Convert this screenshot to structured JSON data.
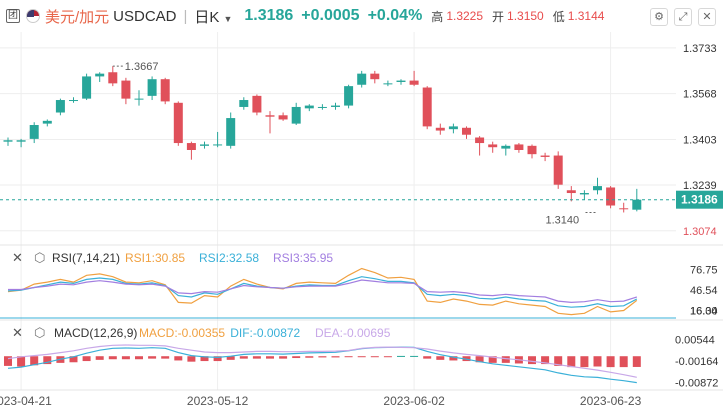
{
  "header": {
    "icon_label": "团",
    "pair_cn": "美元/加元",
    "symbol": "USDCAD",
    "period": "日K",
    "price": "1.3186",
    "change": "+0.0005",
    "change_pct": "+0.04%",
    "high_label": "高",
    "high": "1.3225",
    "open_label": "开",
    "open": "1.3150",
    "low_label": "低",
    "low": "1.3144",
    "settings_icon": "gear-icon",
    "expand_icon": "expand-icon",
    "close_icon": "close-icon"
  },
  "colors": {
    "up": "#27a69a",
    "down": "#e0505a",
    "bg": "#ffffff",
    "grid": "#eeeeee",
    "rsi1": "#f0a040",
    "rsi2": "#3ab0d8",
    "rsi3": "#a27ee0",
    "macd": "#f0a040",
    "dif": "#3ab0d8",
    "dea": "#c8a8e8"
  },
  "chart_data": [
    {
      "type": "candlestick",
      "title": "美元/加元 USDCAD 日K",
      "ylim": [
        1.303,
        1.379
      ],
      "y_ticks": [
        "1.3733",
        "1.3568",
        "1.3403",
        "1.3239",
        "1.3074"
      ],
      "y_tick_values": [
        1.3733,
        1.3568,
        1.3403,
        1.3239,
        1.3074
      ],
      "x_ticks": [
        "2023-04-21",
        "2023-05-12",
        "2023-06-02",
        "2023-06-23"
      ],
      "x_tick_index": [
        1,
        16,
        31,
        46
      ],
      "last_price_label": "1.3186",
      "annotations": [
        {
          "text": "1.3667",
          "index": 8,
          "price": 1.3667
        },
        {
          "text": "1.3140",
          "index": 45,
          "price": 1.314
        }
      ],
      "candles": [
        {
          "o": 1.3395,
          "h": 1.341,
          "l": 1.338,
          "c": 1.34
        },
        {
          "o": 1.3395,
          "h": 1.3405,
          "l": 1.3375,
          "c": 1.34
        },
        {
          "o": 1.3405,
          "h": 1.3465,
          "l": 1.339,
          "c": 1.3455
        },
        {
          "o": 1.346,
          "h": 1.3475,
          "l": 1.345,
          "c": 1.347
        },
        {
          "o": 1.35,
          "h": 1.355,
          "l": 1.349,
          "c": 1.3545
        },
        {
          "o": 1.3545,
          "h": 1.3555,
          "l": 1.3535,
          "c": 1.3545
        },
        {
          "o": 1.355,
          "h": 1.364,
          "l": 1.3545,
          "c": 1.363
        },
        {
          "o": 1.363,
          "h": 1.3645,
          "l": 1.361,
          "c": 1.364
        },
        {
          "o": 1.3645,
          "h": 1.3667,
          "l": 1.3595,
          "c": 1.3605
        },
        {
          "o": 1.3615,
          "h": 1.3625,
          "l": 1.353,
          "c": 1.355
        },
        {
          "o": 1.355,
          "h": 1.358,
          "l": 1.3525,
          "c": 1.355
        },
        {
          "o": 1.356,
          "h": 1.363,
          "l": 1.3545,
          "c": 1.362
        },
        {
          "o": 1.362,
          "h": 1.3625,
          "l": 1.353,
          "c": 1.354
        },
        {
          "o": 1.3535,
          "h": 1.354,
          "l": 1.338,
          "c": 1.339
        },
        {
          "o": 1.339,
          "h": 1.3395,
          "l": 1.333,
          "c": 1.3365
        },
        {
          "o": 1.338,
          "h": 1.3395,
          "l": 1.337,
          "c": 1.3385
        },
        {
          "o": 1.3385,
          "h": 1.343,
          "l": 1.3375,
          "c": 1.3385
        },
        {
          "o": 1.338,
          "h": 1.35,
          "l": 1.337,
          "c": 1.348
        },
        {
          "o": 1.352,
          "h": 1.3555,
          "l": 1.351,
          "c": 1.3545
        },
        {
          "o": 1.356,
          "h": 1.3565,
          "l": 1.349,
          "c": 1.35
        },
        {
          "o": 1.349,
          "h": 1.3505,
          "l": 1.3425,
          "c": 1.3485
        },
        {
          "o": 1.349,
          "h": 1.35,
          "l": 1.347,
          "c": 1.3475
        },
        {
          "o": 1.346,
          "h": 1.3535,
          "l": 1.3455,
          "c": 1.352
        },
        {
          "o": 1.3515,
          "h": 1.353,
          "l": 1.3505,
          "c": 1.3525
        },
        {
          "o": 1.352,
          "h": 1.353,
          "l": 1.351,
          "c": 1.352
        },
        {
          "o": 1.352,
          "h": 1.3535,
          "l": 1.351,
          "c": 1.3525
        },
        {
          "o": 1.3525,
          "h": 1.36,
          "l": 1.3515,
          "c": 1.3595
        },
        {
          "o": 1.36,
          "h": 1.365,
          "l": 1.359,
          "c": 1.364
        },
        {
          "o": 1.364,
          "h": 1.365,
          "l": 1.3605,
          "c": 1.362
        },
        {
          "o": 1.3605,
          "h": 1.3615,
          "l": 1.3595,
          "c": 1.3605
        },
        {
          "o": 1.361,
          "h": 1.362,
          "l": 1.36,
          "c": 1.3615
        },
        {
          "o": 1.3615,
          "h": 1.365,
          "l": 1.3595,
          "c": 1.36
        },
        {
          "o": 1.359,
          "h": 1.3595,
          "l": 1.344,
          "c": 1.345
        },
        {
          "o": 1.3445,
          "h": 1.346,
          "l": 1.342,
          "c": 1.3435
        },
        {
          "o": 1.344,
          "h": 1.346,
          "l": 1.3425,
          "c": 1.345
        },
        {
          "o": 1.3445,
          "h": 1.345,
          "l": 1.3405,
          "c": 1.342
        },
        {
          "o": 1.341,
          "h": 1.3415,
          "l": 1.3345,
          "c": 1.339
        },
        {
          "o": 1.3385,
          "h": 1.3395,
          "l": 1.3355,
          "c": 1.3375
        },
        {
          "o": 1.337,
          "h": 1.3385,
          "l": 1.3345,
          "c": 1.338
        },
        {
          "o": 1.3385,
          "h": 1.339,
          "l": 1.3355,
          "c": 1.3365
        },
        {
          "o": 1.338,
          "h": 1.3385,
          "l": 1.3335,
          "c": 1.335
        },
        {
          "o": 1.3345,
          "h": 1.3355,
          "l": 1.3325,
          "c": 1.334
        },
        {
          "o": 1.3345,
          "h": 1.336,
          "l": 1.3225,
          "c": 1.324
        },
        {
          "o": 1.322,
          "h": 1.3235,
          "l": 1.318,
          "c": 1.321
        },
        {
          "o": 1.3205,
          "h": 1.322,
          "l": 1.3185,
          "c": 1.321
        },
        {
          "o": 1.322,
          "h": 1.3265,
          "l": 1.3205,
          "c": 1.3235
        },
        {
          "o": 1.323,
          "h": 1.3235,
          "l": 1.3155,
          "c": 1.3165
        },
        {
          "o": 1.3155,
          "h": 1.3175,
          "l": 1.314,
          "c": 1.3152
        },
        {
          "o": 1.315,
          "h": 1.3225,
          "l": 1.3144,
          "c": 1.3186
        }
      ]
    },
    {
      "type": "line",
      "title": "RSI(7,14,21)",
      "legend": [
        "RSI1:30.85",
        "RSI2:32.58",
        "RSI3:35.95"
      ],
      "y_ticks": [
        "76.75",
        "46.54",
        "16.34",
        "16.00"
      ],
      "y_tick_values": [
        76.75,
        46.54,
        16.34,
        16.0
      ],
      "ylim": [
        5,
        95
      ],
      "series": [
        {
          "name": "RSI1",
          "values": [
            44,
            46,
            55,
            58,
            62,
            58,
            68,
            70,
            66,
            58,
            57,
            60,
            54,
            28,
            27,
            38,
            36,
            52,
            62,
            55,
            50,
            48,
            56,
            58,
            57,
            56,
            68,
            78,
            72,
            64,
            65,
            62,
            30,
            28,
            33,
            30,
            25,
            24,
            30,
            26,
            24,
            22,
            12,
            10,
            12,
            22,
            14,
            16,
            31
          ]
        },
        {
          "name": "RSI2",
          "values": [
            45,
            46,
            50,
            54,
            58,
            56,
            62,
            64,
            62,
            56,
            55,
            57,
            53,
            38,
            36,
            42,
            40,
            48,
            56,
            52,
            50,
            49,
            52,
            54,
            53,
            53,
            60,
            66,
            63,
            59,
            59,
            57,
            40,
            38,
            40,
            38,
            34,
            33,
            36,
            33,
            31,
            30,
            23,
            21,
            22,
            26,
            22,
            23,
            33
          ]
        },
        {
          "name": "RSI3",
          "values": [
            47,
            47,
            50,
            52,
            55,
            54,
            58,
            60,
            58,
            55,
            54,
            55,
            52,
            42,
            41,
            44,
            43,
            48,
            53,
            51,
            50,
            49,
            51,
            52,
            52,
            52,
            56,
            61,
            59,
            57,
            57,
            56,
            44,
            43,
            44,
            42,
            39,
            38,
            40,
            38,
            37,
            36,
            30,
            28,
            29,
            32,
            29,
            30,
            36
          ]
        }
      ]
    },
    {
      "type": "bar",
      "title": "MACD(12,26,9)",
      "legend": [
        "MACD:-0.00355",
        "DIF:-0.00872",
        "DEA:-0.00695"
      ],
      "y_ticks": [
        "0.00544",
        "-0.00164",
        "-0.00872"
      ],
      "y_tick_values": [
        0.00544,
        -0.00164,
        -0.00872
      ],
      "ylim": [
        -0.0105,
        0.008
      ],
      "series": [
        {
          "name": "MACD",
          "values": [
            -0.0032,
            -0.0034,
            -0.003,
            -0.0026,
            -0.0022,
            -0.002,
            -0.0016,
            -0.0012,
            -0.001,
            -0.001,
            -0.001,
            -0.0008,
            -0.0008,
            -0.0014,
            -0.0018,
            -0.0016,
            -0.0016,
            -0.0012,
            -0.0008,
            -0.0008,
            -0.0008,
            -0.0008,
            -0.0006,
            -0.0005,
            -0.0004,
            -0.0004,
            -0.0002,
            -0.0001,
            -0.0001,
            -0.0001,
            0.0001,
            0.0001,
            -0.0008,
            -0.0012,
            -0.0014,
            -0.0016,
            -0.002,
            -0.0022,
            -0.0022,
            -0.0024,
            -0.0026,
            -0.0026,
            -0.0032,
            -0.0036,
            -0.0036,
            -0.0034,
            -0.0036,
            -0.0036,
            -0.00355
          ]
        },
        {
          "name": "DIF",
          "values": [
            -0.004,
            -0.0036,
            -0.0028,
            -0.002,
            -0.001,
            -0.0002,
            0.001,
            0.002,
            0.0026,
            0.0027,
            0.0026,
            0.0028,
            0.0026,
            0.0012,
            0.0002,
            -0.0002,
            -0.0004,
            0.0,
            0.0006,
            0.0008,
            0.0008,
            0.0007,
            0.0009,
            0.0011,
            0.0012,
            0.0013,
            0.0018,
            0.0025,
            0.0028,
            0.0029,
            0.003,
            0.0029,
            0.0016,
            0.0005,
            -0.0003,
            -0.001,
            -0.0018,
            -0.0025,
            -0.003,
            -0.0035,
            -0.004,
            -0.0045,
            -0.0055,
            -0.0063,
            -0.0068,
            -0.007,
            -0.0076,
            -0.0081,
            -0.00872
          ]
        },
        {
          "name": "DEA",
          "values": [
            -0.0008,
            -0.0002,
            0.0002,
            0.0006,
            0.0012,
            0.0018,
            0.0026,
            0.0032,
            0.0036,
            0.0037,
            0.0036,
            0.0036,
            0.0034,
            0.0026,
            0.002,
            0.0014,
            0.0012,
            0.0012,
            0.0014,
            0.0016,
            0.0016,
            0.0015,
            0.0015,
            0.0016,
            0.0016,
            0.0017,
            0.0019,
            0.0026,
            0.0029,
            0.003,
            0.0029,
            0.0028,
            0.0024,
            0.0017,
            0.0011,
            0.0006,
            0.0002,
            -0.0003,
            -0.0008,
            -0.0012,
            -0.0017,
            -0.0022,
            -0.0028,
            -0.0034,
            -0.004,
            -0.0046,
            -0.0053,
            -0.0061,
            -0.00695
          ]
        }
      ]
    }
  ]
}
